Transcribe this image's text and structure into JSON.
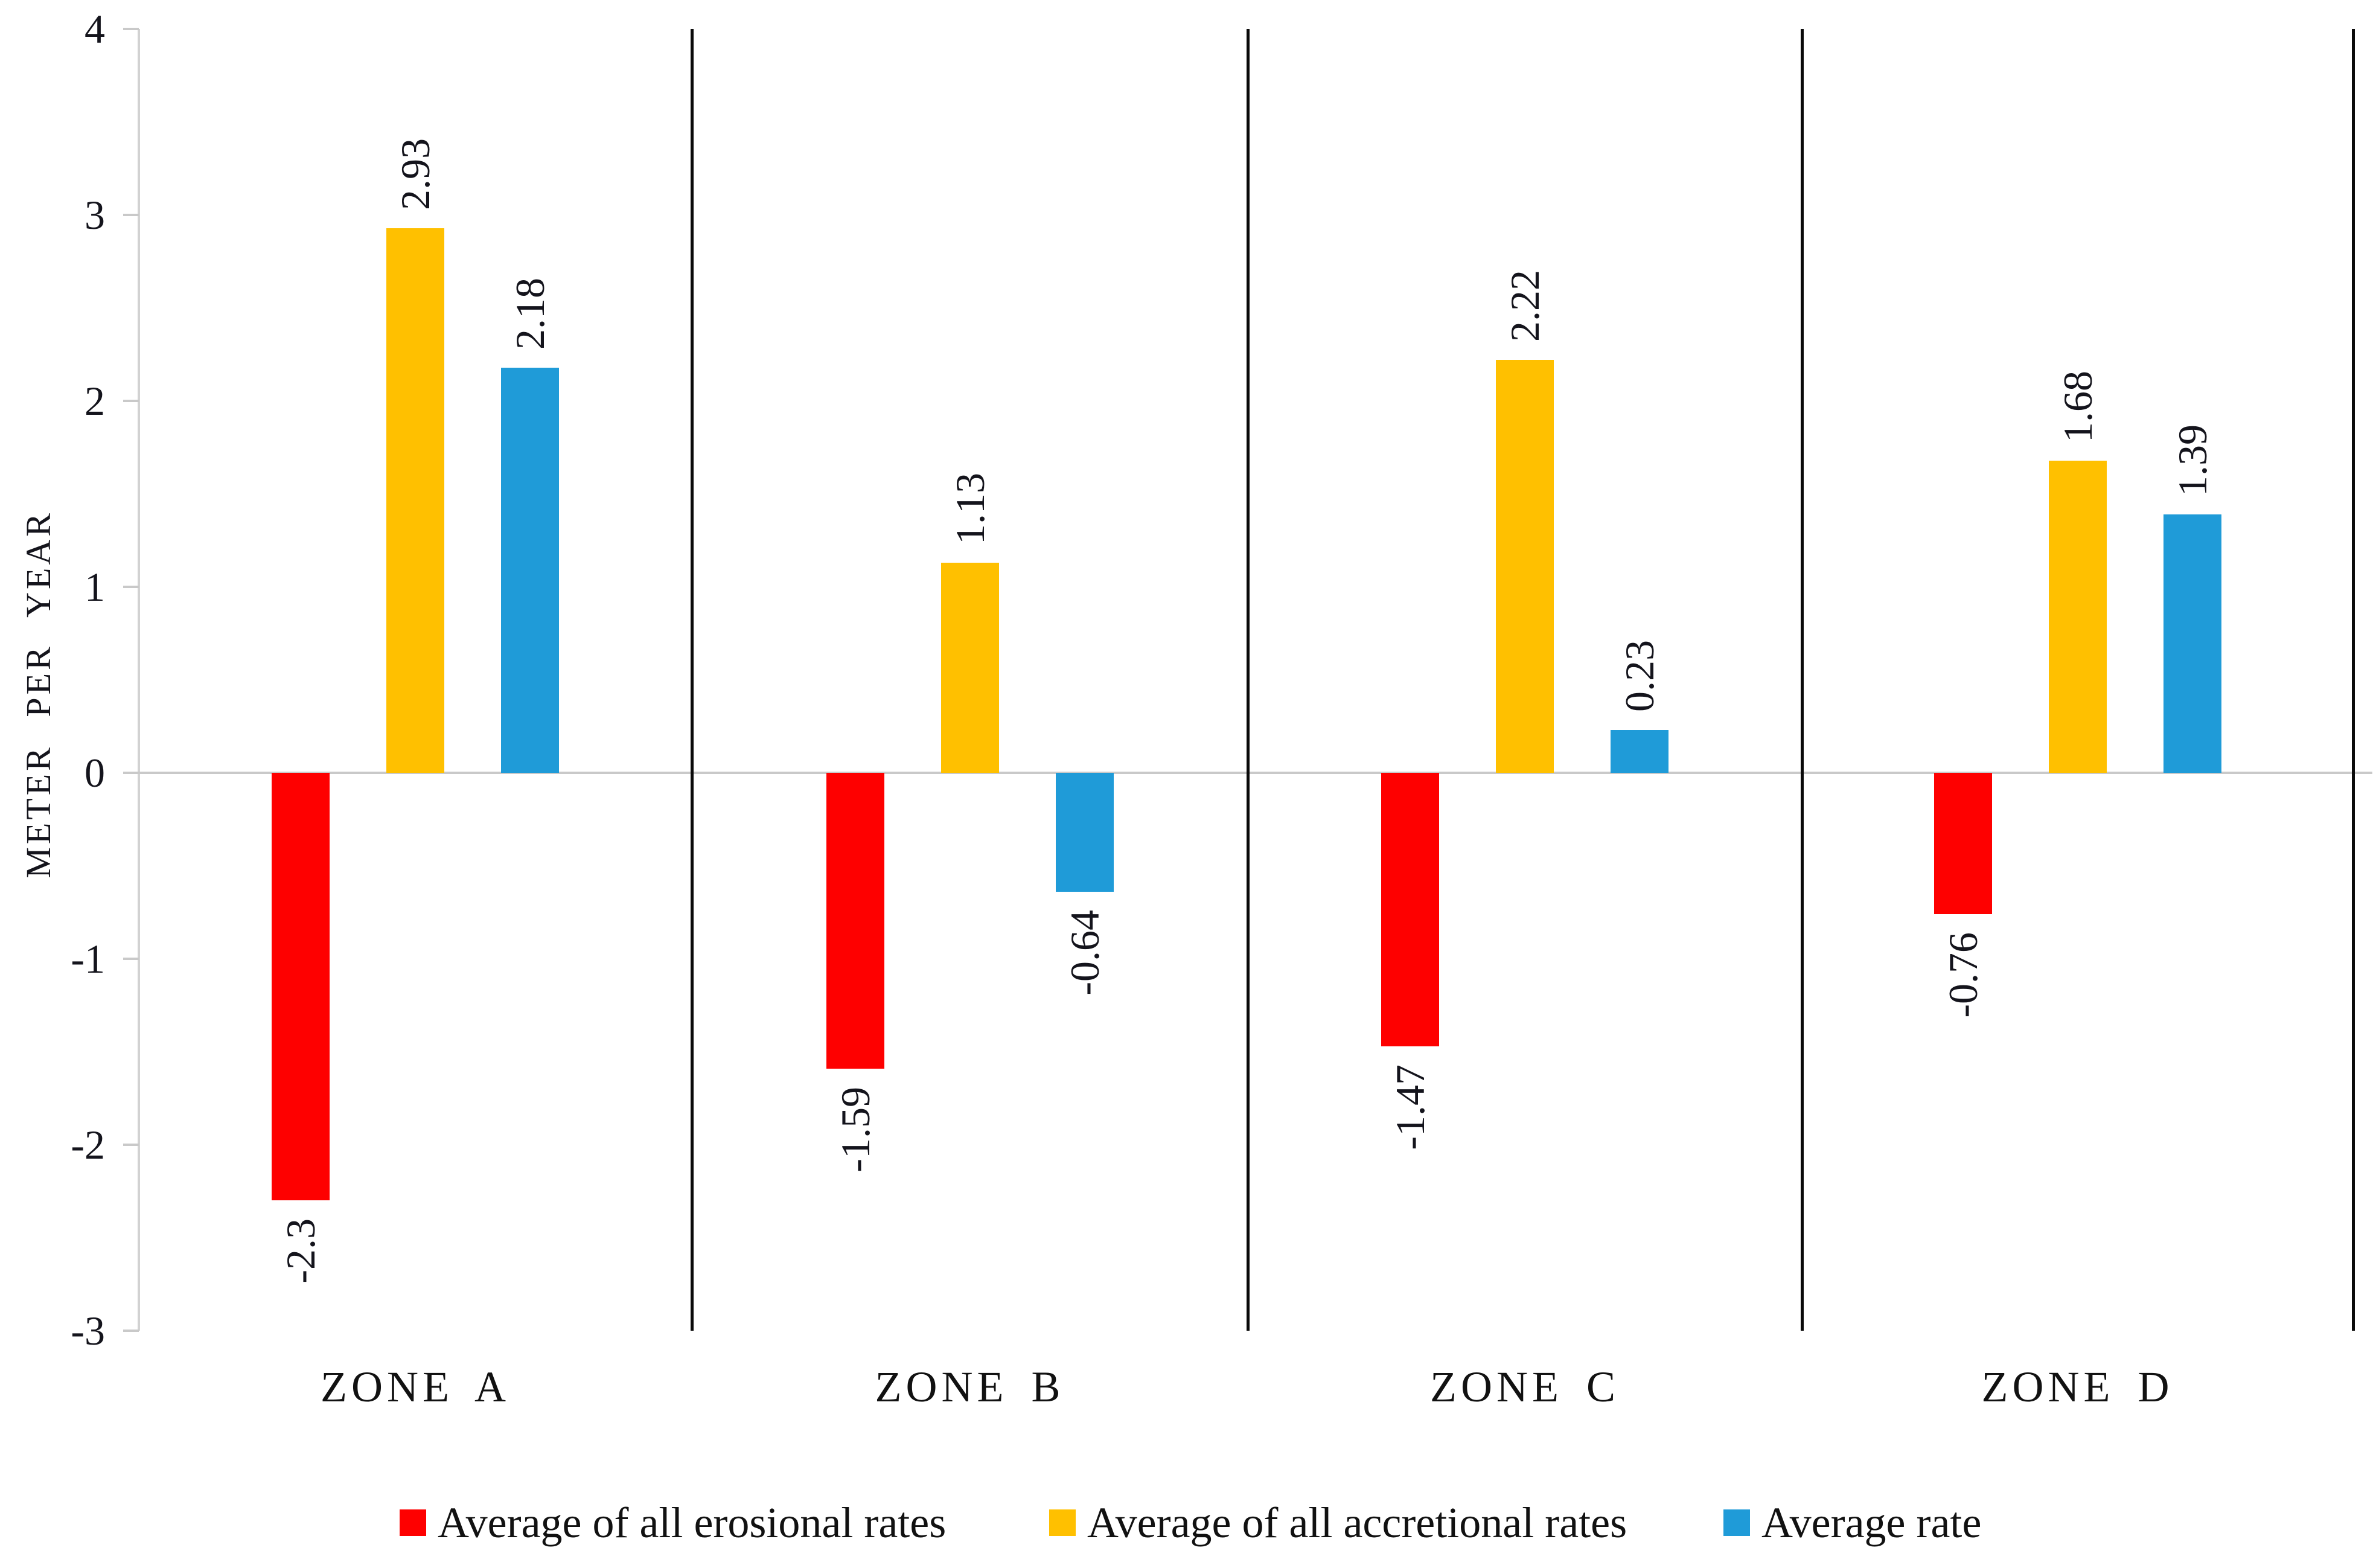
{
  "chart_data": {
    "type": "bar",
    "title": "",
    "ylabel": "METER PER YEAR",
    "xlabel": "",
    "ylim": [
      -3,
      4
    ],
    "ytick_values": [
      4,
      3,
      2,
      1,
      0,
      -1,
      -2,
      -3
    ],
    "ytick_labels": [
      "4",
      "3",
      "2",
      "1",
      "0",
      "-1",
      "-2",
      "-3"
    ],
    "categories": [
      "ZONE A",
      "ZONE B",
      "ZONE C",
      "ZONE D"
    ],
    "series": [
      {
        "name": "Average of all erosional rates",
        "color": "#fe0000",
        "values": [
          -2.3,
          -1.59,
          -1.47,
          -0.76
        ],
        "data_labels": [
          "-2.3",
          "-1.59",
          "-1.47",
          "-0.76"
        ]
      },
      {
        "name": "Average of all accretional rates",
        "color": "#ffc000",
        "values": [
          2.93,
          1.13,
          2.22,
          1.68
        ],
        "data_labels": [
          "2.93",
          "1.13",
          "2.22",
          "1.68"
        ]
      },
      {
        "name": "Average rate",
        "color": "#1f9bd8",
        "values": [
          2.18,
          -0.64,
          0.23,
          1.39
        ],
        "data_labels": [
          "2.18",
          "-0.64",
          "0.23",
          "1.39"
        ]
      }
    ],
    "grid": "zero gridline only",
    "legend_position": "bottom",
    "zone_dividers": true,
    "data_label_rotation": "vertical, reading bottom to top"
  },
  "colors": {
    "background": "#ffffff",
    "axis_line": "#d2d2d2",
    "tick": "#c9c9c9",
    "zero_line": "#c9c9c9",
    "divider": "#0a0a0a",
    "text": "#14141c"
  }
}
